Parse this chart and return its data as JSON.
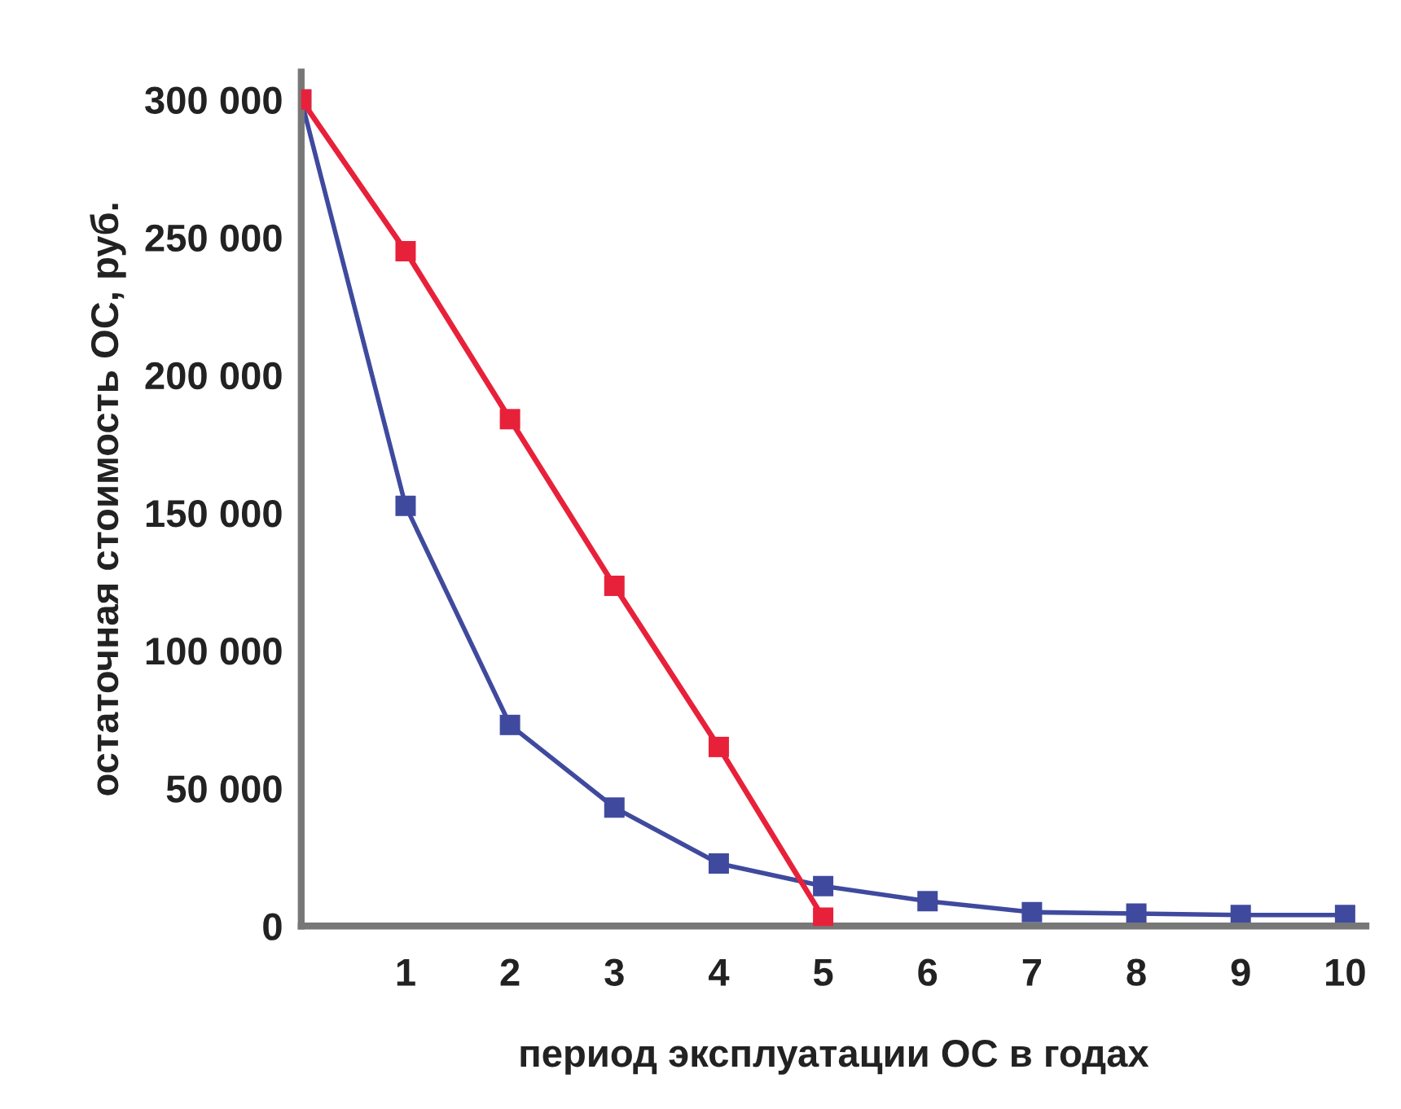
{
  "chart_data": {
    "type": "line",
    "xlabel": "период эксплуатации ОС в годах",
    "ylabel": "остаточная стоимость ОС, руб.",
    "x": [
      0,
      1,
      2,
      3,
      4,
      5,
      6,
      7,
      8,
      9,
      10
    ],
    "series": [
      {
        "color": "#e8213a",
        "x": [
          0,
          1,
          2,
          3,
          4,
          5
        ],
        "values": [
          300000,
          245000,
          184000,
          123500,
          65000,
          3000
        ]
      },
      {
        "color": "#3f4a9e",
        "values": [
          300000,
          152500,
          73000,
          43000,
          22700,
          14500,
          9000,
          5000,
          4500,
          4000,
          4000
        ]
      }
    ],
    "xlim": [
      0,
      10.2
    ],
    "xticks": [
      1,
      2,
      3,
      4,
      5,
      6,
      7,
      8,
      9,
      10
    ],
    "ylim": [
      0,
      310000
    ],
    "yticks": [
      {
        "value": 0,
        "label": "0"
      },
      {
        "value": 50000,
        "label": "50 000"
      },
      {
        "value": 100000,
        "label": "100 000"
      },
      {
        "value": 150000,
        "label": "150 000"
      },
      {
        "value": 200000,
        "label": "200 000"
      },
      {
        "value": 250000,
        "label": "250 000"
      },
      {
        "value": 300000,
        "label": "300 000"
      }
    ],
    "marker": "square",
    "line_style": "solid",
    "grid": false,
    "legend": false
  }
}
